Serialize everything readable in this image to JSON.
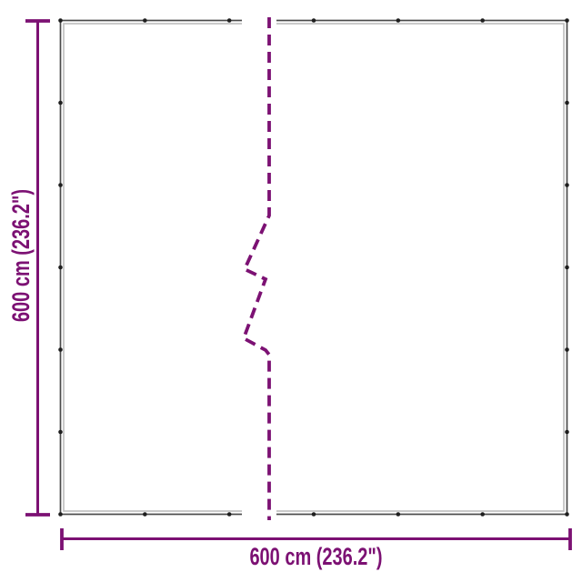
{
  "diagram": {
    "kind": "product-dimension-diagram",
    "subject": "tarpaulin-sheet-with-eyelets-broken-view",
    "width_label": "600 cm (236.2\")",
    "height_label": "600 cm (236.2\")",
    "eyelets_per_edge": 7,
    "colors": {
      "accent": "#7C1173",
      "outline_dark": "#4A4A4A",
      "outline_light": "#BDBDBD",
      "eyelet": "#1E1E1E",
      "background": "#FFFFFF"
    }
  }
}
